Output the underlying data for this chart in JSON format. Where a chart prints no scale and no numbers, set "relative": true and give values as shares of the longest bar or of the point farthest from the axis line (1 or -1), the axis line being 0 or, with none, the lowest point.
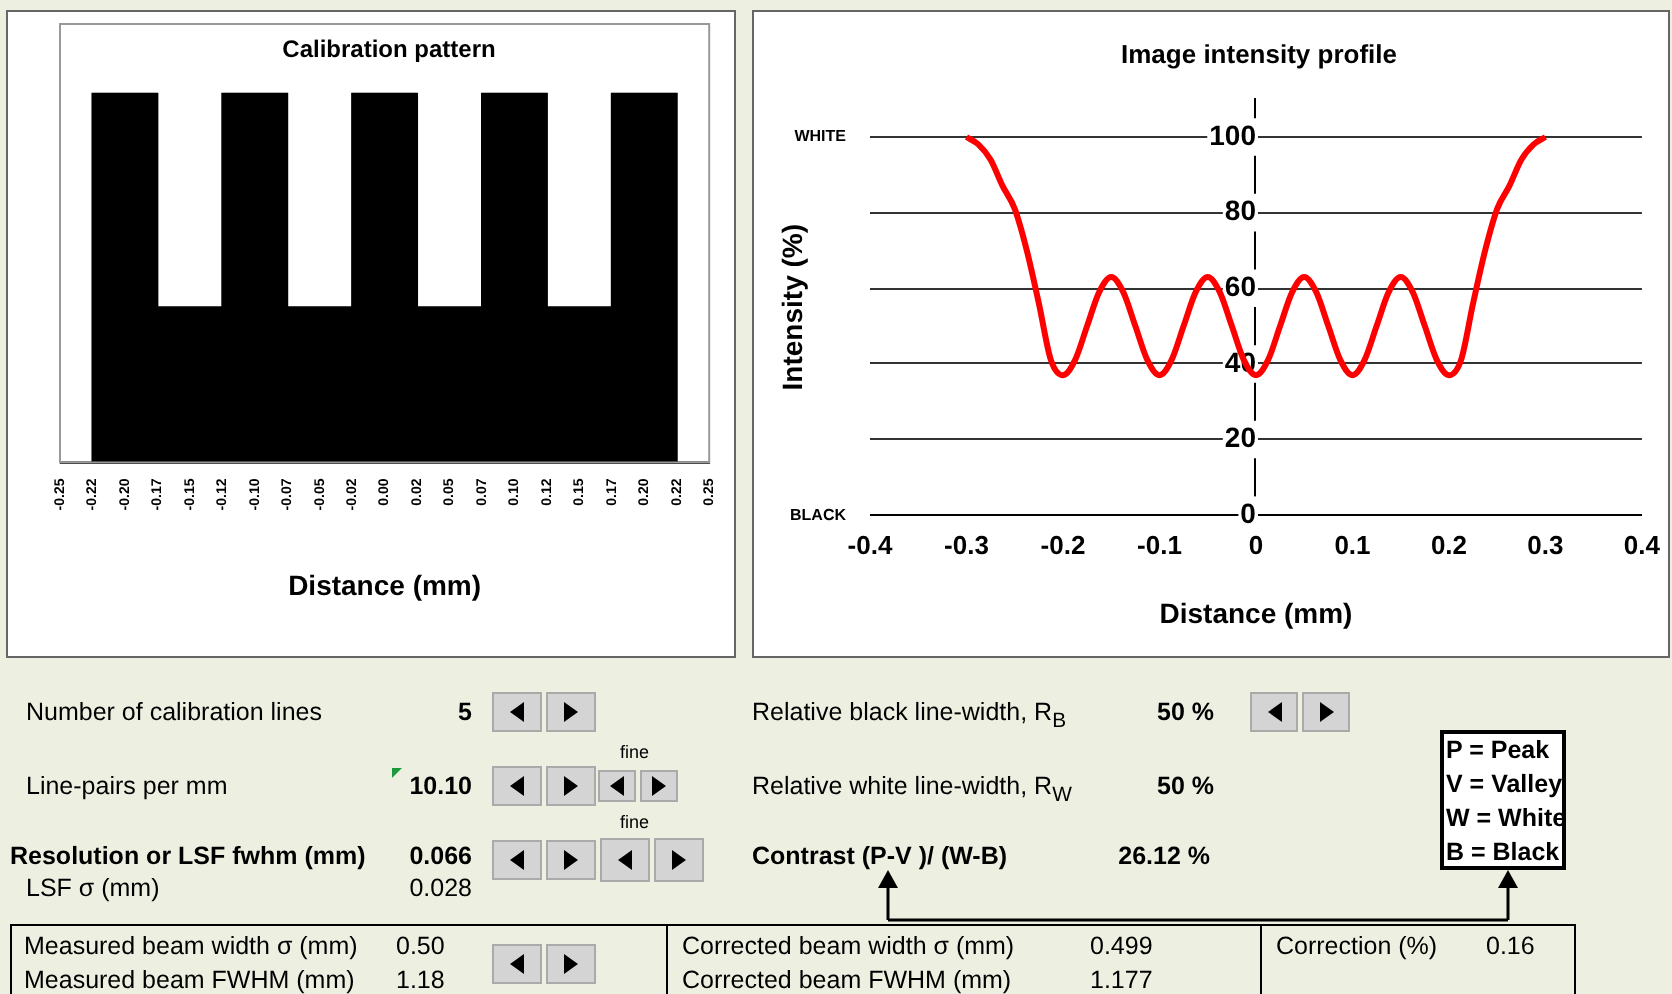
{
  "chart_data": [
    {
      "type": "area",
      "title": "Calibration pattern",
      "xlabel": "Distance (mm)",
      "relative": true,
      "x": [
        -0.25,
        -0.225,
        -0.225,
        -0.175,
        -0.175,
        -0.125,
        -0.125,
        -0.075,
        -0.075,
        -0.025,
        -0.025,
        0.025,
        0.025,
        0.075,
        0.075,
        0.125,
        0.125,
        0.175,
        0.175,
        0.225,
        0.225,
        0.25
      ],
      "series": [
        {
          "color": "#000000",
          "values": [
            0,
            0,
            1,
            1,
            0.42,
            0.42,
            1,
            1,
            0.42,
            0.42,
            1,
            1,
            0.42,
            0.42,
            1,
            1,
            0.42,
            0.42,
            1,
            1,
            0,
            0
          ]
        }
      ],
      "xlim": [
        -0.25,
        0.25
      ],
      "xticks": [
        {
          "value": -0.25,
          "label": "-0.25"
        },
        {
          "value": -0.225,
          "label": "-0.22"
        },
        {
          "value": -0.2,
          "label": "-0.20"
        },
        {
          "value": -0.175,
          "label": "-0.17"
        },
        {
          "value": -0.15,
          "label": "-0.15"
        },
        {
          "value": -0.125,
          "label": "-0.12"
        },
        {
          "value": -0.1,
          "label": "-0.10"
        },
        {
          "value": -0.075,
          "label": "-0.07"
        },
        {
          "value": -0.05,
          "label": "-0.05"
        },
        {
          "value": -0.025,
          "label": "-0.02"
        },
        {
          "value": 0,
          "label": "0.00"
        },
        {
          "value": 0.025,
          "label": "0.02"
        },
        {
          "value": 0.05,
          "label": "0.05"
        },
        {
          "value": 0.075,
          "label": "0.07"
        },
        {
          "value": 0.1,
          "label": "0.10"
        },
        {
          "value": 0.125,
          "label": "0.12"
        },
        {
          "value": 0.15,
          "label": "0.15"
        },
        {
          "value": 0.175,
          "label": "0.17"
        },
        {
          "value": 0.2,
          "label": "0.20"
        },
        {
          "value": 0.225,
          "label": "0.22"
        },
        {
          "value": 0.25,
          "label": "0.25"
        }
      ]
    },
    {
      "type": "line",
      "title": "Image intensity profile",
      "xlabel": "Distance (mm)",
      "ylabel": "Intensity (%)",
      "x": [
        -0.3,
        -0.2875,
        -0.275,
        -0.2625,
        -0.25,
        -0.2375,
        -0.225,
        -0.2125,
        -0.2,
        -0.1875,
        -0.175,
        -0.1625,
        -0.15,
        -0.1375,
        -0.125,
        -0.1125,
        -0.1,
        -0.0875,
        -0.075,
        -0.0625,
        -0.05,
        -0.0375,
        -0.025,
        -0.0125,
        0,
        0.0125,
        0.025,
        0.0375,
        0.05,
        0.0625,
        0.075,
        0.0875,
        0.1,
        0.1125,
        0.125,
        0.1375,
        0.15,
        0.1625,
        0.175,
        0.1875,
        0.2,
        0.2125,
        0.225,
        0.2375,
        0.25,
        0.2625,
        0.275,
        0.2875,
        0.3
      ],
      "series": [
        {
          "color": "#ff0000",
          "values": [
            100,
            98,
            94,
            87,
            81,
            70,
            56,
            41,
            37,
            41,
            50,
            59,
            63,
            59,
            50,
            41,
            37,
            41,
            50,
            59,
            63,
            59,
            50,
            41,
            37,
            41,
            50,
            59,
            63,
            59,
            50,
            41,
            37,
            41,
            50,
            59,
            63,
            59,
            50,
            41,
            37,
            41,
            56,
            70,
            81,
            87,
            94,
            98,
            100
          ]
        }
      ],
      "xlim": [
        -0.4,
        0.4
      ],
      "xticks": [
        -0.4,
        -0.3,
        -0.2,
        -0.1,
        0,
        0.1,
        0.2,
        0.3,
        0.4
      ],
      "ylim": [
        0,
        110
      ],
      "yticks": [
        0,
        20,
        40,
        60,
        80,
        100
      ],
      "grid": "y",
      "marker": "none",
      "annotations": [
        "WHITE",
        "BLACK"
      ]
    },
    {
      "type": "other",
      "annotations": [
        "Number of calibration lines",
        "5",
        "Line-pairs per mm",
        "10.10",
        "fine",
        "Resolution or LSF fwhm (mm)",
        "0.066",
        "fine",
        "LSF σ (mm)",
        "0.028",
        "Relative black line-width, R$_{B}$",
        "50 %",
        "Relative white line-width, R$_{W}$",
        "50 %",
        "Contrast  (P-V )/ (W-B)",
        "26.12 %",
        "P = Peak",
        "V = Valley",
        "W = White",
        "B = Black",
        "Measured beam width σ (mm)",
        "0.50",
        "Measured beam FWHM (mm)",
        "1.18",
        "Corrected beam width σ (mm)",
        "0.499",
        "Corrected beam FWHM (mm)",
        "1.177",
        "Correction (%)",
        "0.16"
      ]
    }
  ]
}
